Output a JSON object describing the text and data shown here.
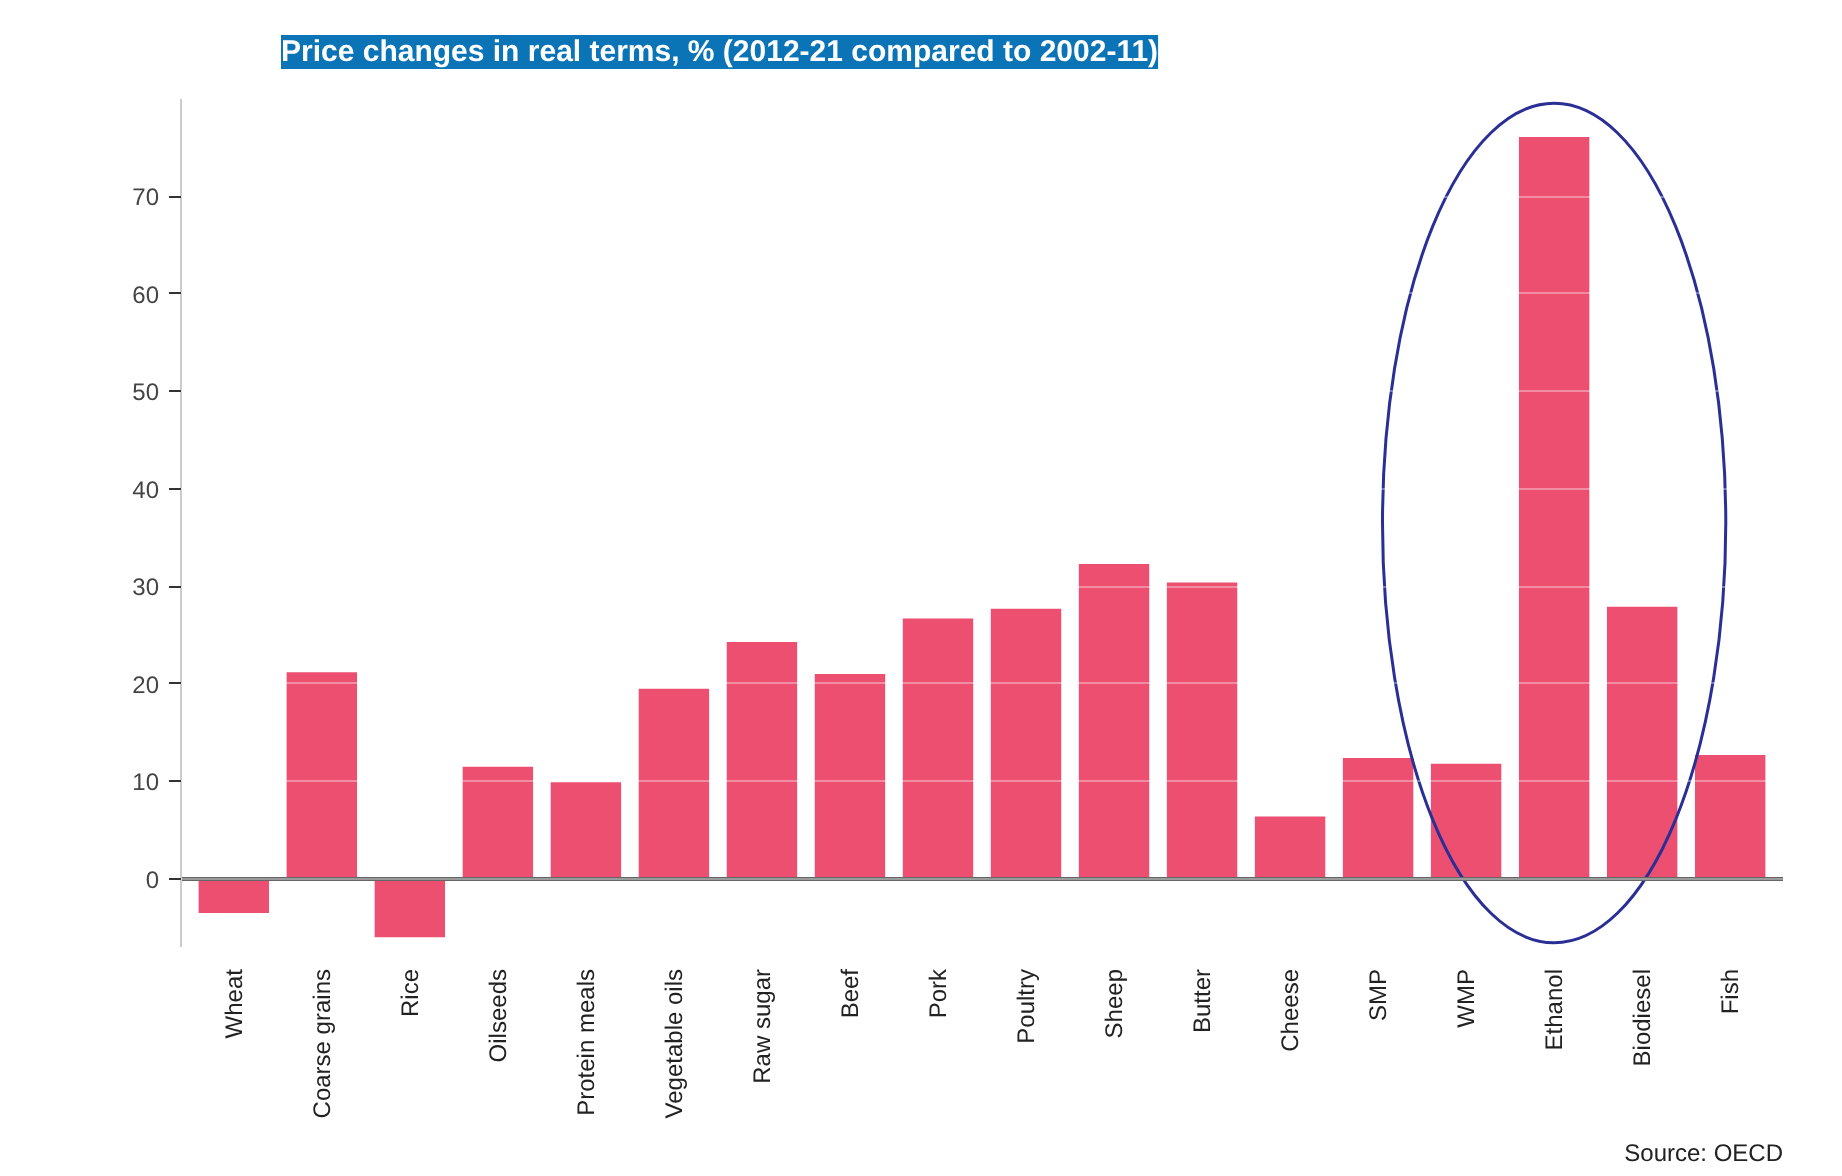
{
  "chart_data": {
    "type": "bar",
    "title": "Price changes in real terms, % (2012-21 compared to 2002-11)",
    "categories": [
      "Wheat",
      "Coarse grains",
      "Rice",
      "Oilseeds",
      "Protein meals",
      "Vegetable oils",
      "Raw sugar",
      "Beef",
      "Pork",
      "Poultry",
      "Sheep",
      "Butter",
      "Cheese",
      "SMP",
      "WMP",
      "Ethanol",
      "Biodiesel",
      "Fish"
    ],
    "values": [
      -3.5,
      21.2,
      -6,
      11.5,
      9.9,
      19.5,
      24.3,
      21,
      26.7,
      27.7,
      32.3,
      30.4,
      6.4,
      12.4,
      11.8,
      76.1,
      27.9,
      12.7
    ],
    "color": "#ec4f6f",
    "ylim": [
      -7,
      80
    ],
    "yticks": [
      0,
      10,
      20,
      30,
      40,
      50,
      60,
      70
    ],
    "grid": "y",
    "annotations": [
      "Source: OECD"
    ]
  }
}
